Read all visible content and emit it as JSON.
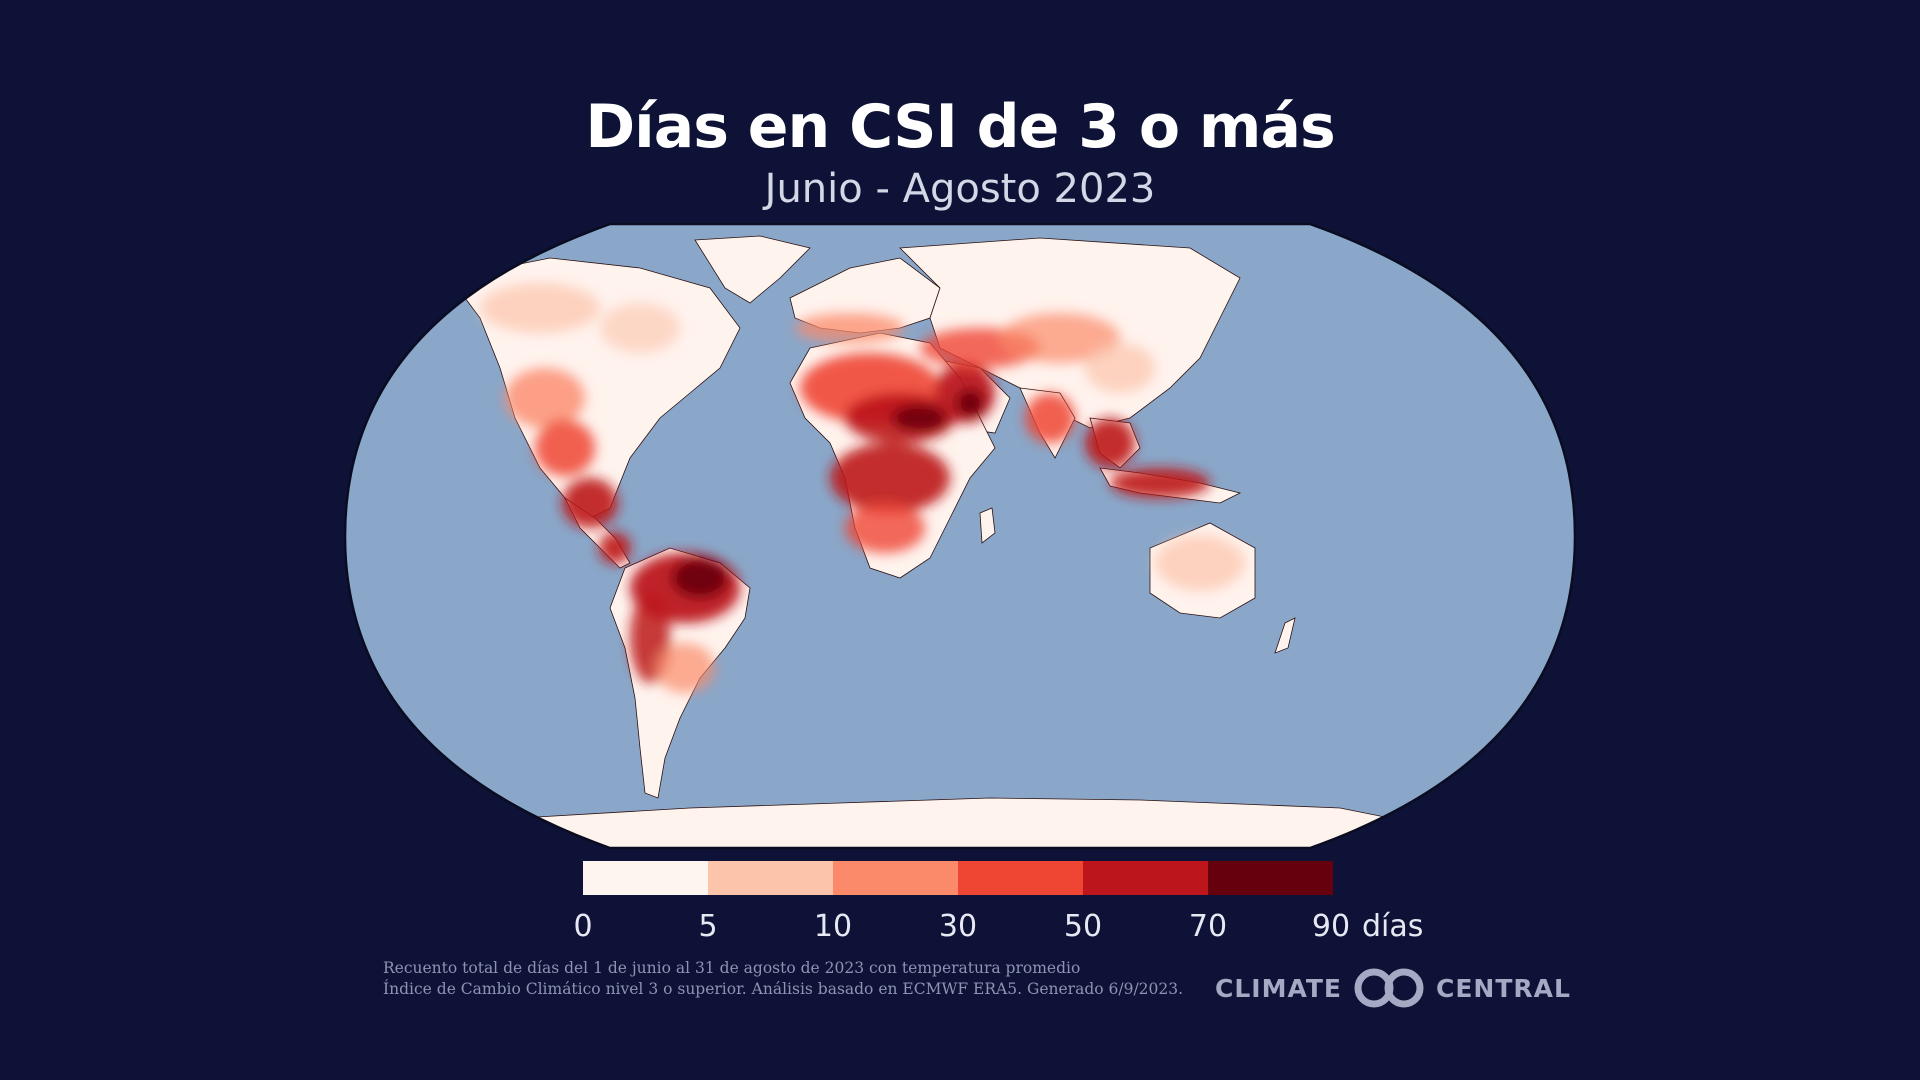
{
  "header": {
    "title": "Días en CSI de 3 o más",
    "subtitle": "Junio - Agosto 2023"
  },
  "map": {
    "projection": "robinson",
    "ocean_color": "#8aa7c9",
    "land_low_color": "#fff3ee"
  },
  "legend": {
    "ticks": [
      "0",
      "5",
      "10",
      "30",
      "50",
      "70",
      "90"
    ],
    "unit": "días",
    "colors": [
      "#fff5f0",
      "#fcc5ab",
      "#fb8a6a",
      "#ef4533",
      "#bc151b",
      "#67000d"
    ]
  },
  "footnote": {
    "line1": "Recuento total de días del 1 de junio al 31 de agosto de 2023 con temperatura promedio",
    "line2": "Índice de Cambio Climático nivel 3 o superior. Análisis basado en ECMWF ERA5. Generado 6/9/2023."
  },
  "logo": {
    "left": "CLIMATE",
    "right": "CENTRAL",
    "icon": "climate-central-logo-icon"
  },
  "colors": {
    "background": "#0e1236",
    "title": "#ffffff",
    "subtitle": "#d4d7e6"
  }
}
